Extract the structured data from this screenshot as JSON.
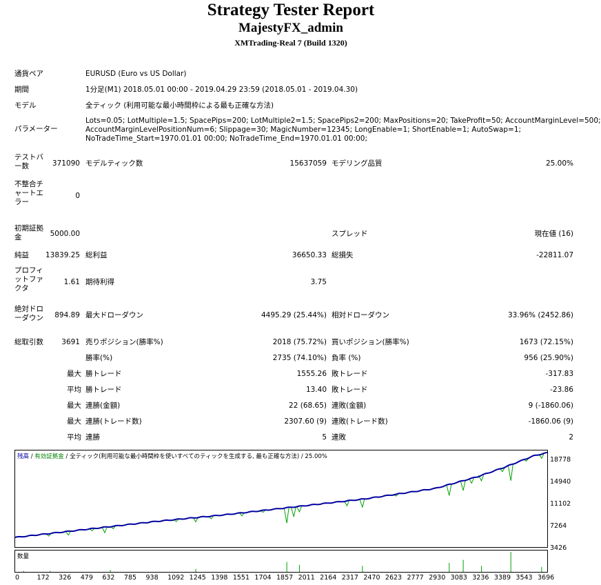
{
  "header": {
    "title": "Strategy Tester Report",
    "account": "MajestyFX_admin",
    "server": "XMTrading-Real 7 (Build 1320)"
  },
  "info": {
    "symbol_label": "通貨ペア",
    "symbol_value": "EURUSD (Euro vs US Dollar)",
    "period_label": "期間",
    "period_value": "1分足(M1) 2018.05.01 00:00 - 2019.04.29 23:59 (2018.05.01 - 2019.04.30)",
    "model_label": "モデル",
    "model_value": "全ティック (利用可能な最小時間枠による最も正確な方法)",
    "params_label": "パラメーター",
    "params_line1": "Lots=0.05; LotMultiple=1.5; SpacePips=200; LotMultiple2=1.5; SpacePips2=200; MaxPositions=20; TakeProfit=50; AccountMarginLevel=500;",
    "params_line2": "AccountMarginLevelPositionNum=6; Slippage=30; MagicNumber=12345; LongEnable=1; ShortEnable=1; AutoSwap=1;",
    "params_line3": "NoTradeTime_Start=1970.01.01 00:00; NoTradeTime_End=1970.01.01 00:00;"
  },
  "stats": {
    "bars_label": "テストバー数",
    "bars_value": "371090",
    "ticks_label": "モデルティック数",
    "ticks_value": "15637059",
    "quality_label": "モデリング品質",
    "quality_value": "25.00%",
    "mismatch_label": "不整合チャートエラー",
    "mismatch_value": "0",
    "deposit_label": "初期証拠金",
    "deposit_value": "5000.00",
    "spread_label": "スプレッド",
    "spread_value": "現在値 (16)",
    "net_label": "純益",
    "net_value": "13839.25",
    "gross_profit_label": "総利益",
    "gross_profit_value": "36650.33",
    "gross_loss_label": "総損失",
    "gross_loss_value": "-22811.07",
    "pf_label": "プロフィットファクタ",
    "pf_value": "1.61",
    "expected_label": "期待利得",
    "expected_value": "3.75",
    "abs_dd_label": "絶対ドローダウン",
    "abs_dd_value": "894.89",
    "max_dd_label": "最大ドローダウン",
    "max_dd_value": "4495.29 (25.44%)",
    "rel_dd_label": "相対ドローダウン",
    "rel_dd_value": "33.96% (2452.86)",
    "total_trades_label": "総取引数",
    "total_trades_value": "3691",
    "short_label": "売りポジション(勝率%)",
    "short_value": "2018 (75.72%)",
    "long_label": "買いポジション(勝率%)",
    "long_value": "1673 (72.15%)",
    "winrate_label": "勝率(%)",
    "winrate_value": "2735 (74.10%)",
    "lossrate_label": "負率 (%)",
    "lossrate_value": "956 (25.90%)",
    "max1": "最大",
    "largest_win_label": "勝トレード",
    "largest_win_value": "1555.26",
    "largest_loss_label": "敗トレード",
    "largest_loss_value": "-317.83",
    "avg1": "平均",
    "avg_win_label": "勝トレード",
    "avg_win_value": "13.40",
    "avg_loss_label": "敗トレード",
    "avg_loss_value": "-23.86",
    "max2": "最大",
    "max_consec_wins_label": "連勝(金額)",
    "max_consec_wins_value": "22 (68.65)",
    "max_consec_losses_label": "連敗(金額)",
    "max_consec_losses_value": "9 (-1860.06)",
    "max3": "最大",
    "max_consec_profit_label": "連勝(トレード数)",
    "max_consec_profit_value": "2307.60 (9)",
    "max_consec_loss_label": "連敗(トレード数)",
    "max_consec_loss_value": "-1860.06 (9)",
    "avg2": "平均",
    "avg_consec_wins_label": "連勝",
    "avg_consec_wins_value": "5",
    "avg_consec_losses_label": "連敗",
    "avg_consec_losses_value": "2"
  },
  "chart_data": {
    "type": "line",
    "legend_balance": "残高",
    "legend_sep1": " / ",
    "legend_equity": "有効証拠金",
    "legend_sep2": " / 全ティック(利用可能な最小時間枠を使いすべてのティックを生成する, 最も正確な方法) / 25.00%",
    "volume_label": "数量",
    "colors": {
      "balance": "#0000a0",
      "equity": "#00a000",
      "volume": "#00a000"
    },
    "y_ticks": [
      "18778",
      "14940",
      "11102",
      "7264",
      "3426"
    ],
    "x_ticks": [
      "0",
      "172",
      "326",
      "479",
      "632",
      "785",
      "938",
      "1092",
      "1245",
      "1398",
      "1551",
      "1704",
      "1857",
      "2011",
      "2164",
      "2317",
      "2470",
      "2623",
      "2777",
      "2930",
      "3083",
      "3236",
      "3389",
      "3543",
      "3696"
    ],
    "xlim": [
      0,
      3800
    ],
    "ylim": [
      3426,
      19200
    ],
    "balance_start": 5000,
    "balance_end": 18839,
    "balance_points": [
      [
        0,
        5000
      ],
      [
        500,
        6300
      ],
      [
        1000,
        7600
      ],
      [
        1500,
        8700
      ],
      [
        2000,
        10000
      ],
      [
        2500,
        11300
      ],
      [
        3000,
        13000
      ],
      [
        3300,
        14900
      ],
      [
        3500,
        16500
      ],
      [
        3700,
        18300
      ],
      [
        3800,
        18839
      ]
    ],
    "equity_dips": [
      [
        240,
        -400
      ],
      [
        380,
        -600
      ],
      [
        550,
        -350
      ],
      [
        640,
        -900
      ],
      [
        700,
        -400
      ],
      [
        1150,
        -350
      ],
      [
        1290,
        -700
      ],
      [
        1400,
        -450
      ],
      [
        1620,
        -500
      ],
      [
        1770,
        -300
      ],
      [
        1940,
        -2500
      ],
      [
        1990,
        -1600
      ],
      [
        2030,
        -900
      ],
      [
        2370,
        -800
      ],
      [
        2480,
        -1300
      ],
      [
        2720,
        -300
      ],
      [
        3100,
        -1800
      ],
      [
        3200,
        -1600
      ],
      [
        3260,
        -800
      ],
      [
        3330,
        -900
      ],
      [
        3480,
        -600
      ],
      [
        3540,
        -2600
      ],
      [
        3650,
        -400
      ],
      [
        3760,
        -700
      ]
    ],
    "volume_spikes": [
      [
        60,
        0.05
      ],
      [
        250,
        0.05
      ],
      [
        680,
        0.1
      ],
      [
        1290,
        0.15
      ],
      [
        1940,
        0.5
      ],
      [
        2030,
        0.35
      ],
      [
        2480,
        0.3
      ],
      [
        3100,
        0.45
      ],
      [
        3200,
        0.6
      ],
      [
        3330,
        0.3
      ],
      [
        3540,
        1.0
      ],
      [
        3760,
        0.25
      ]
    ]
  }
}
